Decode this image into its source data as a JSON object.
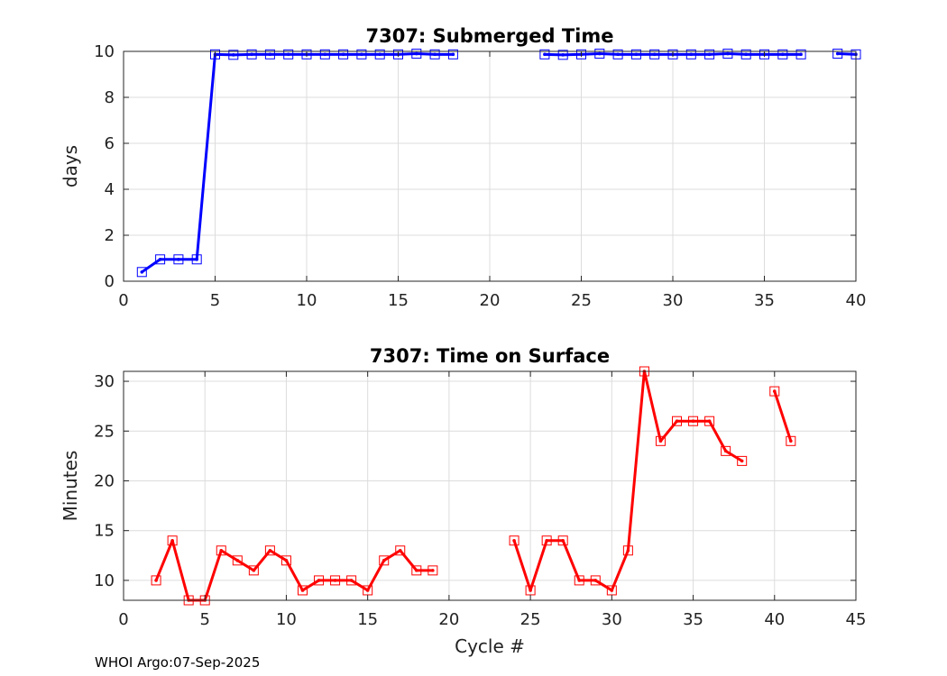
{
  "footer": "WHOI Argo:07-Sep-2025",
  "chart_data": [
    {
      "type": "line",
      "title": "7307: Submerged Time",
      "xlabel": "",
      "ylabel": "days",
      "xlim": [
        0,
        40
      ],
      "ylim": [
        0,
        10
      ],
      "xticks": [
        0,
        5,
        10,
        15,
        20,
        25,
        30,
        35,
        40
      ],
      "yticks": [
        0,
        2,
        4,
        6,
        8,
        10
      ],
      "grid": true,
      "color": "#0000ff",
      "marker": "square",
      "series": [
        {
          "x": [
            1,
            2,
            3,
            4,
            5,
            6,
            7,
            8,
            9,
            10,
            11,
            12,
            13,
            14,
            15,
            16,
            17,
            18,
            23,
            24,
            25,
            26,
            27,
            28,
            29,
            30,
            31,
            32,
            33,
            34,
            35,
            36,
            37,
            39,
            40
          ],
          "y": [
            0.4,
            0.95,
            0.95,
            0.95,
            9.87,
            9.85,
            9.87,
            9.87,
            9.87,
            9.87,
            9.87,
            9.87,
            9.87,
            9.87,
            9.87,
            9.9,
            9.87,
            9.87,
            9.87,
            9.85,
            9.87,
            9.9,
            9.87,
            9.87,
            9.87,
            9.87,
            9.87,
            9.87,
            9.9,
            9.87,
            9.87,
            9.87,
            9.87,
            9.9,
            9.87
          ]
        }
      ]
    },
    {
      "type": "line",
      "title": "7307: Time on Surface",
      "xlabel": "Cycle #",
      "ylabel": "Minutes",
      "xlim": [
        0,
        45
      ],
      "ylim": [
        8,
        31
      ],
      "xticks": [
        0,
        5,
        10,
        15,
        20,
        25,
        30,
        35,
        40,
        45
      ],
      "yticks": [
        10,
        15,
        20,
        25,
        30
      ],
      "grid": true,
      "color": "#ff0000",
      "marker": "square",
      "series": [
        {
          "x": [
            2,
            3,
            4,
            5,
            6,
            7,
            8,
            9,
            10,
            11,
            12,
            13,
            14,
            15,
            16,
            17,
            18,
            19,
            24,
            25,
            26,
            27,
            28,
            29,
            30,
            31,
            32,
            33,
            34,
            35,
            36,
            37,
            38,
            40,
            41
          ],
          "y": [
            10,
            14,
            8,
            8,
            13,
            12,
            11,
            13,
            12,
            9,
            10,
            10,
            10,
            9,
            12,
            13,
            11,
            11,
            14,
            9,
            14,
            14,
            10,
            10,
            9,
            13,
            31,
            24,
            26,
            26,
            26,
            23,
            22,
            29,
            24
          ]
        }
      ]
    }
  ]
}
